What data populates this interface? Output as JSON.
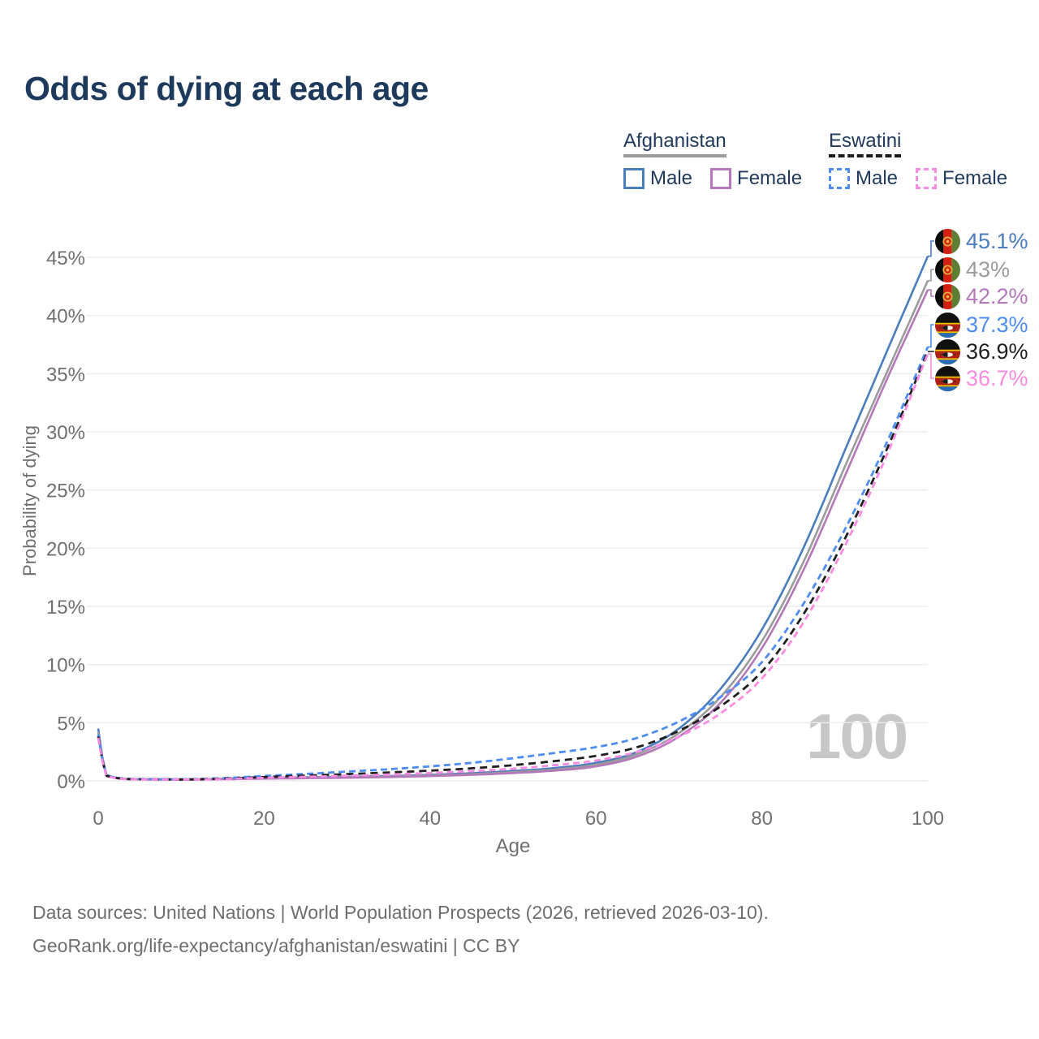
{
  "title": "Odds of dying at each age",
  "legend": {
    "groups": [
      {
        "label": "Afghanistan",
        "underline_style": "solid",
        "underline_color": "#9b9b9b",
        "items": [
          {
            "label": "Male",
            "color": "#4a7dbd",
            "dashed": false
          },
          {
            "label": "Female",
            "color": "#b478ba",
            "dashed": false
          }
        ]
      },
      {
        "label": "Eswatini",
        "underline_style": "dashed",
        "underline_color": "#1c1c1c",
        "items": [
          {
            "label": "Male",
            "color": "#4d8df2",
            "dashed": true
          },
          {
            "label": "Female",
            "color": "#fb8ae2",
            "dashed": true
          }
        ]
      }
    ]
  },
  "chart_data": {
    "type": "line",
    "title": "Odds of dying at each age",
    "xlabel": "Age",
    "ylabel": "Probability of dying",
    "xlim": [
      0,
      100
    ],
    "ylim": [
      0,
      46
    ],
    "grid": "horizontal",
    "watermark": "100",
    "axes": {
      "x": {
        "label": "Age",
        "ticks": [
          "0",
          "20",
          "40",
          "60",
          "80",
          "100"
        ]
      },
      "y": {
        "label": "Probability of dying",
        "ticks": [
          "0%",
          "5%",
          "10%",
          "15%",
          "20%",
          "25%",
          "30%",
          "35%",
          "40%",
          "45%"
        ]
      }
    },
    "x": [
      0,
      1,
      5,
      10,
      15,
      20,
      25,
      30,
      35,
      40,
      45,
      50,
      55,
      60,
      65,
      70,
      75,
      80,
      85,
      90,
      95,
      100
    ],
    "series": [
      {
        "name": "Afghanistan Male",
        "country": "afghanistan",
        "sex": "male",
        "color": "#4a7dbd",
        "dash": null,
        "values": [
          4.5,
          0.5,
          0.15,
          0.13,
          0.18,
          0.26,
          0.3,
          0.35,
          0.42,
          0.52,
          0.66,
          0.85,
          1.1,
          1.55,
          2.5,
          4.5,
          7.9,
          13.0,
          20.0,
          28.4,
          36.8,
          45.1
        ]
      },
      {
        "name": "Afghanistan Both sexes",
        "country": "afghanistan",
        "sex": "both",
        "color": "#9b9b9b",
        "dash": null,
        "values": [
          4.2,
          0.46,
          0.14,
          0.11,
          0.16,
          0.22,
          0.26,
          0.31,
          0.37,
          0.46,
          0.58,
          0.75,
          0.98,
          1.4,
          2.3,
          4.1,
          7.2,
          12.0,
          18.8,
          27.0,
          35.0,
          43.0
        ]
      },
      {
        "name": "Afghanistan Female",
        "country": "afghanistan",
        "sex": "female",
        "color": "#b478ba",
        "dash": null,
        "values": [
          3.9,
          0.42,
          0.12,
          0.1,
          0.14,
          0.19,
          0.23,
          0.27,
          0.33,
          0.41,
          0.52,
          0.67,
          0.88,
          1.25,
          2.1,
          3.8,
          6.7,
          11.4,
          18.1,
          26.2,
          34.4,
          42.2
        ]
      },
      {
        "name": "Eswatini Male",
        "country": "eswatini",
        "sex": "male",
        "color": "#4d8df2",
        "dash": "8 5",
        "values": [
          4.0,
          0.48,
          0.16,
          0.14,
          0.24,
          0.42,
          0.6,
          0.8,
          1.0,
          1.25,
          1.55,
          1.95,
          2.4,
          2.9,
          3.7,
          5.1,
          7.2,
          10.2,
          15.2,
          21.6,
          29.0,
          37.3
        ]
      },
      {
        "name": "Eswatini Both sexes",
        "country": "eswatini",
        "sex": "both",
        "color": "#1f1f1f",
        "dash": "9 6",
        "values": [
          3.8,
          0.45,
          0.14,
          0.12,
          0.19,
          0.33,
          0.45,
          0.58,
          0.72,
          0.88,
          1.08,
          1.35,
          1.7,
          2.15,
          2.9,
          4.3,
          6.4,
          9.4,
          14.3,
          20.8,
          28.4,
          36.9
        ]
      },
      {
        "name": "Eswatini Female",
        "country": "eswatini",
        "sex": "female",
        "color": "#fb8ae2",
        "dash": "8 5",
        "values": [
          3.7,
          0.42,
          0.13,
          0.11,
          0.16,
          0.26,
          0.35,
          0.44,
          0.55,
          0.68,
          0.84,
          1.05,
          1.35,
          1.75,
          2.5,
          3.8,
          5.8,
          8.8,
          13.6,
          20.2,
          27.9,
          36.7
        ]
      }
    ],
    "end_labels": [
      {
        "text": "45.1%",
        "value": 45.1,
        "color": "#4a7dbd",
        "flag": "afghanistan"
      },
      {
        "text": "43%",
        "value": 43.0,
        "color": "#9b9b9b",
        "flag": "afghanistan"
      },
      {
        "text": "42.2%",
        "value": 42.2,
        "color": "#b478ba",
        "flag": "afghanistan"
      },
      {
        "text": "37.3%",
        "value": 37.3,
        "color": "#4d8df2",
        "flag": "eswatini"
      },
      {
        "text": "36.9%",
        "value": 36.9,
        "color": "#1f1f1f",
        "flag": "eswatini"
      },
      {
        "text": "36.7%",
        "value": 36.7,
        "color": "#fb8ae2",
        "flag": "eswatini"
      }
    ]
  },
  "footer": {
    "line1": "Data sources: United Nations | World Population Prospects (2026, retrieved 2026-03-10).",
    "line2": "GeoRank.org/life-expectancy/afghanistan/eswatini | CC BY"
  }
}
